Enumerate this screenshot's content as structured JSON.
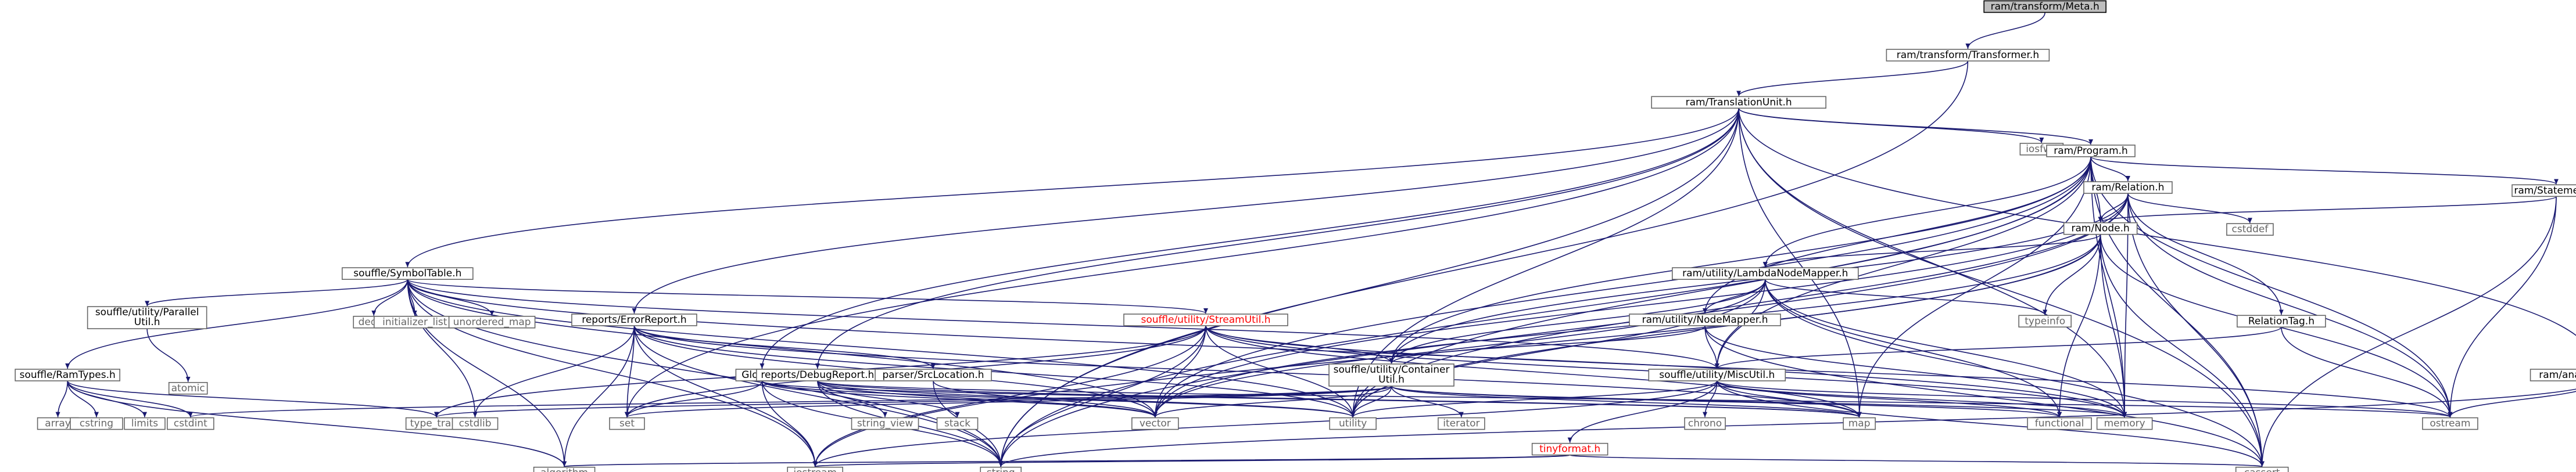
{
  "graph": {
    "nodes": [
      {
        "id": "meta",
        "lines": [
          "ram/transform/Meta.h"
        ],
        "kind": "root"
      },
      {
        "id": "transformer",
        "lines": [
          "ram/transform/Transformer.h"
        ]
      },
      {
        "id": "tu",
        "lines": [
          "ram/TranslationUnit.h"
        ]
      },
      {
        "id": "iosfwd",
        "lines": [
          "iosfwd"
        ],
        "kind": "sys"
      },
      {
        "id": "program",
        "lines": [
          "ram/Program.h"
        ]
      },
      {
        "id": "relation",
        "lines": [
          "ram/Relation.h"
        ]
      },
      {
        "id": "statement",
        "lines": [
          "ram/Statement.h"
        ]
      },
      {
        "id": "node",
        "lines": [
          "ram/Node.h"
        ]
      },
      {
        "id": "cstddef",
        "lines": [
          "cstddef"
        ],
        "kind": "sys"
      },
      {
        "id": "lambdamapper",
        "lines": [
          "ram/utility/LambdaNodeMapper.h"
        ]
      },
      {
        "id": "symboltable",
        "lines": [
          "souffle/SymbolTable.h"
        ]
      },
      {
        "id": "parallelutil",
        "lines": [
          "souffle/utility/Parallel",
          "Util.h"
        ]
      },
      {
        "id": "atomic",
        "lines": [
          "atomic"
        ],
        "kind": "sys"
      },
      {
        "id": "deque",
        "lines": [
          "deque"
        ],
        "kind": "sys"
      },
      {
        "id": "initlist",
        "lines": [
          "initializer_list"
        ],
        "kind": "sys"
      },
      {
        "id": "unorderedmap",
        "lines": [
          "unordered_map"
        ],
        "kind": "sys"
      },
      {
        "id": "streamutil",
        "lines": [
          "souffle/utility/StreamUtil.h"
        ],
        "kind": "red"
      },
      {
        "id": "errorreport",
        "lines": [
          "reports/ErrorReport.h"
        ]
      },
      {
        "id": "nodemapper",
        "lines": [
          "ram/utility/NodeMapper.h"
        ]
      },
      {
        "id": "typeinfo",
        "lines": [
          "typeinfo"
        ],
        "kind": "sys"
      },
      {
        "id": "relationtag",
        "lines": [
          "RelationTag.h"
        ]
      },
      {
        "id": "ramtypes",
        "lines": [
          "souffle/RamTypes.h"
        ]
      },
      {
        "id": "global",
        "lines": [
          "Global.h"
        ]
      },
      {
        "id": "debugreport",
        "lines": [
          "reports/DebugReport.h"
        ]
      },
      {
        "id": "srclocation",
        "lines": [
          "parser/SrcLocation.h"
        ]
      },
      {
        "id": "containerutil",
        "lines": [
          "souffle/utility/Container",
          "Util.h"
        ]
      },
      {
        "id": "miscutil",
        "lines": [
          "souffle/utility/MiscUtil.h"
        ]
      },
      {
        "id": "analysis",
        "lines": [
          "ram/analysis/Analysis.h"
        ]
      },
      {
        "id": "array",
        "lines": [
          "array"
        ],
        "kind": "sys"
      },
      {
        "id": "cstring",
        "lines": [
          "cstring"
        ],
        "kind": "sys"
      },
      {
        "id": "limits",
        "lines": [
          "limits"
        ],
        "kind": "sys"
      },
      {
        "id": "cstdint",
        "lines": [
          "cstdint"
        ],
        "kind": "sys"
      },
      {
        "id": "typetraits",
        "lines": [
          "type_traits"
        ],
        "kind": "sys"
      },
      {
        "id": "cstdlib",
        "lines": [
          "cstdlib"
        ],
        "kind": "sys"
      },
      {
        "id": "set",
        "lines": [
          "set"
        ],
        "kind": "sys"
      },
      {
        "id": "stringview",
        "lines": [
          "string_view"
        ],
        "kind": "sys"
      },
      {
        "id": "stack",
        "lines": [
          "stack"
        ],
        "kind": "sys"
      },
      {
        "id": "vector",
        "lines": [
          "vector"
        ],
        "kind": "sys"
      },
      {
        "id": "utility",
        "lines": [
          "utility"
        ],
        "kind": "sys"
      },
      {
        "id": "iterator",
        "lines": [
          "iterator"
        ],
        "kind": "sys"
      },
      {
        "id": "chrono",
        "lines": [
          "chrono"
        ],
        "kind": "sys"
      },
      {
        "id": "map",
        "lines": [
          "map"
        ],
        "kind": "sys"
      },
      {
        "id": "functional",
        "lines": [
          "functional"
        ],
        "kind": "sys"
      },
      {
        "id": "memory",
        "lines": [
          "memory"
        ],
        "kind": "sys"
      },
      {
        "id": "ostream",
        "lines": [
          "ostream"
        ],
        "kind": "sys"
      },
      {
        "id": "tinyformat",
        "lines": [
          "tinyformat.h"
        ],
        "kind": "red"
      },
      {
        "id": "algorithm",
        "lines": [
          "algorithm"
        ],
        "kind": "sys"
      },
      {
        "id": "iostream",
        "lines": [
          "iostream"
        ],
        "kind": "sys"
      },
      {
        "id": "string",
        "lines": [
          "string"
        ],
        "kind": "sys"
      },
      {
        "id": "cassert",
        "lines": [
          "cassert"
        ],
        "kind": "sys"
      }
    ],
    "edges": [
      [
        "meta",
        "transformer"
      ],
      [
        "transformer",
        "tu"
      ],
      [
        "transformer",
        "string"
      ],
      [
        "tu",
        "iosfwd"
      ],
      [
        "tu",
        "program"
      ],
      [
        "tu",
        "symboltable"
      ],
      [
        "tu",
        "errorreport"
      ],
      [
        "tu",
        "debugreport"
      ],
      [
        "tu",
        "global"
      ],
      [
        "tu",
        "analysis"
      ],
      [
        "tu",
        "set"
      ],
      [
        "tu",
        "utility"
      ],
      [
        "tu",
        "memory"
      ],
      [
        "tu",
        "map"
      ],
      [
        "tu",
        "cassert"
      ],
      [
        "tu",
        "string"
      ],
      [
        "program",
        "relation"
      ],
      [
        "program",
        "statement"
      ],
      [
        "program",
        "node"
      ],
      [
        "program",
        "lambdamapper"
      ],
      [
        "program",
        "nodemapper"
      ],
      [
        "program",
        "containerutil"
      ],
      [
        "program",
        "miscutil"
      ],
      [
        "program",
        "vector"
      ],
      [
        "program",
        "utility"
      ],
      [
        "program",
        "memory"
      ],
      [
        "program",
        "ostream"
      ],
      [
        "program",
        "string"
      ],
      [
        "program",
        "cassert"
      ],
      [
        "program",
        "map"
      ],
      [
        "relation",
        "node"
      ],
      [
        "relation",
        "cstddef"
      ],
      [
        "relation",
        "relationtag"
      ],
      [
        "relation",
        "containerutil"
      ],
      [
        "relation",
        "memory"
      ],
      [
        "relation",
        "ostream"
      ],
      [
        "relation",
        "string"
      ],
      [
        "relation",
        "utility"
      ],
      [
        "relation",
        "vector"
      ],
      [
        "relation",
        "cassert"
      ],
      [
        "statement",
        "node"
      ],
      [
        "statement",
        "ostream"
      ],
      [
        "statement",
        "cassert"
      ],
      [
        "node",
        "lambdamapper"
      ],
      [
        "node",
        "typeinfo"
      ],
      [
        "node",
        "functional"
      ],
      [
        "node",
        "memory"
      ],
      [
        "node",
        "ostream"
      ],
      [
        "node",
        "utility"
      ],
      [
        "node",
        "vector"
      ],
      [
        "node",
        "cassert"
      ],
      [
        "node",
        "iostream"
      ],
      [
        "lambdamapper",
        "nodemapper"
      ],
      [
        "lambdamapper",
        "typeinfo"
      ],
      [
        "lambdamapper",
        "functional"
      ],
      [
        "lambdamapper",
        "memory"
      ],
      [
        "lambdamapper",
        "utility"
      ],
      [
        "lambdamapper",
        "containerutil"
      ],
      [
        "lambdamapper",
        "miscutil"
      ],
      [
        "lambdamapper",
        "cassert"
      ],
      [
        "lambdamapper",
        "vector"
      ],
      [
        "nodemapper",
        "miscutil"
      ],
      [
        "nodemapper",
        "memory"
      ],
      [
        "nodemapper",
        "cassert"
      ],
      [
        "nodemapper",
        "containerutil"
      ],
      [
        "relationtag",
        "ostream"
      ],
      [
        "relationtag",
        "miscutil"
      ],
      [
        "symboltable",
        "parallelutil"
      ],
      [
        "symboltable",
        "ramtypes"
      ],
      [
        "symboltable",
        "streamutil"
      ],
      [
        "symboltable",
        "deque"
      ],
      [
        "symboltable",
        "initlist"
      ],
      [
        "symboltable",
        "unorderedmap"
      ],
      [
        "symboltable",
        "cstdlib"
      ],
      [
        "symboltable",
        "iostream"
      ],
      [
        "symboltable",
        "memory"
      ],
      [
        "symboltable",
        "string"
      ],
      [
        "symboltable",
        "utility"
      ],
      [
        "symboltable",
        "vector"
      ],
      [
        "symboltable",
        "algorithm"
      ],
      [
        "symboltable",
        "miscutil"
      ],
      [
        "parallelutil",
        "atomic"
      ],
      [
        "ramtypes",
        "array"
      ],
      [
        "ramtypes",
        "cstring"
      ],
      [
        "ramtypes",
        "limits"
      ],
      [
        "ramtypes",
        "cstdint"
      ],
      [
        "ramtypes",
        "typetraits"
      ],
      [
        "ramtypes",
        "algorithm"
      ],
      [
        "streamutil",
        "containerutil"
      ],
      [
        "streamutil",
        "map"
      ],
      [
        "streamutil",
        "set"
      ],
      [
        "streamutil",
        "iostream"
      ],
      [
        "streamutil",
        "ostream"
      ],
      [
        "streamutil",
        "string"
      ],
      [
        "streamutil",
        "utility"
      ],
      [
        "streamutil",
        "vector"
      ],
      [
        "streamutil",
        "memory"
      ],
      [
        "streamutil",
        "typetraits"
      ],
      [
        "errorreport",
        "srclocation"
      ],
      [
        "errorreport",
        "algorithm"
      ],
      [
        "errorreport",
        "cstdlib"
      ],
      [
        "errorreport",
        "iostream"
      ],
      [
        "errorreport",
        "map"
      ],
      [
        "errorreport",
        "set"
      ],
      [
        "errorreport",
        "string"
      ],
      [
        "errorreport",
        "utility"
      ],
      [
        "errorreport",
        "vector"
      ],
      [
        "srclocation",
        "vector"
      ],
      [
        "srclocation",
        "string"
      ],
      [
        "global",
        "vector"
      ],
      [
        "global",
        "iostream"
      ],
      [
        "global",
        "map"
      ],
      [
        "global",
        "string"
      ],
      [
        "global",
        "set"
      ],
      [
        "global",
        "utility"
      ],
      [
        "debugreport",
        "stringview"
      ],
      [
        "debugreport",
        "stack"
      ],
      [
        "debugreport",
        "vector"
      ],
      [
        "debugreport",
        "string"
      ],
      [
        "debugreport",
        "utility"
      ],
      [
        "debugreport",
        "map"
      ],
      [
        "debugreport",
        "ostream"
      ],
      [
        "containerutil",
        "vector"
      ],
      [
        "containerutil",
        "utility"
      ],
      [
        "containerutil",
        "iterator"
      ],
      [
        "containerutil",
        "functional"
      ],
      [
        "containerutil",
        "memory"
      ],
      [
        "containerutil",
        "map"
      ],
      [
        "containerutil",
        "set"
      ],
      [
        "containerutil",
        "typetraits"
      ],
      [
        "containerutil",
        "cstdint"
      ],
      [
        "miscutil",
        "chrono"
      ],
      [
        "miscutil",
        "tinyformat"
      ],
      [
        "miscutil",
        "iostream"
      ],
      [
        "miscutil",
        "map"
      ],
      [
        "miscutil",
        "memory"
      ],
      [
        "miscutil",
        "cassert"
      ],
      [
        "miscutil",
        "utility"
      ],
      [
        "miscutil",
        "functional"
      ],
      [
        "miscutil",
        "ostream"
      ],
      [
        "tinyformat",
        "algorithm"
      ],
      [
        "tinyformat",
        "cassert"
      ],
      [
        "tinyformat",
        "iostream"
      ],
      [
        "analysis",
        "ostream"
      ],
      [
        "analysis",
        "string"
      ]
    ]
  }
}
